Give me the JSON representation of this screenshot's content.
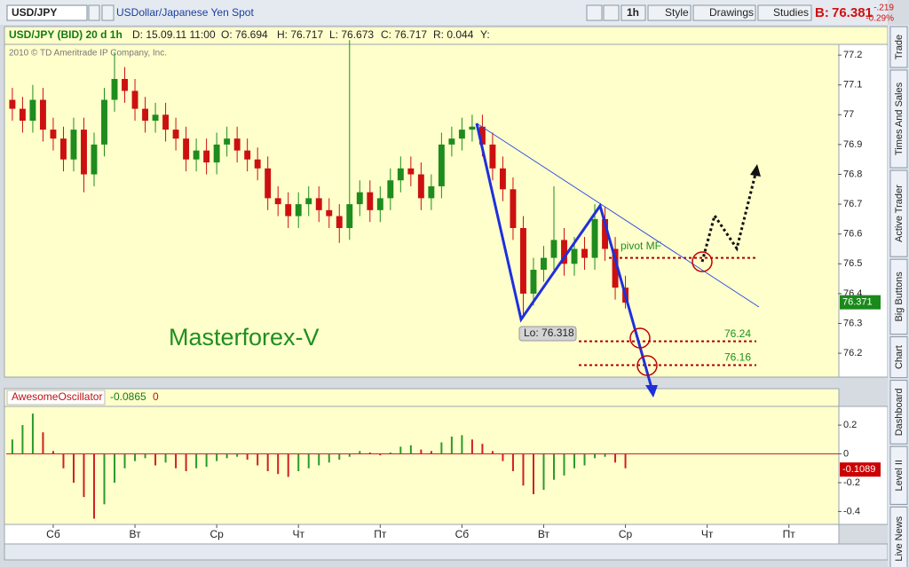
{
  "toolbar": {
    "symbol": "USD/JPY",
    "description": "USDollar/Japanese Yen Spot",
    "interval": "1h",
    "style": "Style",
    "drawings": "Drawings",
    "studies": "Studies",
    "bid_label": "B:",
    "bid": "76.381",
    "change": "-.219",
    "change_pct": "-0.29%"
  },
  "side_tabs": [
    "Trade",
    "Times And Sales",
    "Active Trader",
    "Big Buttons",
    "Chart",
    "Dashboard",
    "Level II",
    "Live News"
  ],
  "info_bar": {
    "title": "USD/JPY (BID) 20 d 1h",
    "date": "D: 15.09.11 11:00",
    "open": "O: 76.694",
    "high": "H: 76.717",
    "low": "L: 76.673",
    "close": "C: 76.717",
    "range": "R: 0.044",
    "y": "Y:"
  },
  "copyright": "2010 © TD Ameritrade IP Company, Inc.",
  "watermark": "Masterforex-V",
  "low_label": "Lo: 76.318",
  "chart_data": [
    {
      "type": "candlestick",
      "up_color": "#1e8c1e",
      "down_color": "#cc1010",
      "background": "#ffffcc",
      "x": [
        -0.5,
        -0.375,
        -0.25,
        -0.125,
        0,
        0.125,
        0.25,
        0.375,
        0.5,
        0.625,
        0.75,
        0.875,
        1,
        1.125,
        1.25,
        1.375,
        1.5,
        1.625,
        1.75,
        1.875,
        2,
        2.125,
        2.25,
        2.375,
        2.5,
        2.625,
        2.75,
        2.875,
        3,
        3.125,
        3.25,
        3.375,
        3.5,
        3.625,
        3.75,
        3.875,
        4,
        4.125,
        4.25,
        4.375,
        4.5,
        4.625,
        4.75,
        4.875,
        5,
        5.125,
        5.25,
        5.375,
        5.5,
        5.625,
        5.75,
        5.875,
        6,
        6.125,
        6.25,
        6.375,
        6.5,
        6.625,
        6.75,
        6.875,
        7
      ],
      "open": [
        77.05,
        77.02,
        76.98,
        77.05,
        76.95,
        76.92,
        76.85,
        76.95,
        76.8,
        76.9,
        77.05,
        77.12,
        77.08,
        77.02,
        76.98,
        77.0,
        76.95,
        76.92,
        76.85,
        76.88,
        76.84,
        76.9,
        76.92,
        76.88,
        76.85,
        76.82,
        76.72,
        76.7,
        76.66,
        76.7,
        76.72,
        76.68,
        76.66,
        76.62,
        76.7,
        76.74,
        76.68,
        76.72,
        76.78,
        76.82,
        76.8,
        76.72,
        76.76,
        76.9,
        76.92,
        76.95,
        76.96,
        76.9,
        76.82,
        76.75,
        76.62,
        76.4,
        76.48,
        76.52,
        76.58,
        76.5,
        76.55,
        76.52,
        76.65,
        76.55,
        76.42
      ],
      "high": [
        77.09,
        77.06,
        77.1,
        77.09,
        76.99,
        76.96,
        76.99,
        76.99,
        76.94,
        77.09,
        77.21,
        77.16,
        77.12,
        77.06,
        77.04,
        77.04,
        76.99,
        76.96,
        76.92,
        76.92,
        76.94,
        76.96,
        76.96,
        76.92,
        76.89,
        76.86,
        76.76,
        76.74,
        76.74,
        76.76,
        76.76,
        76.72,
        76.7,
        77.25,
        76.78,
        76.78,
        76.76,
        76.82,
        76.86,
        76.86,
        76.84,
        76.8,
        76.94,
        76.96,
        76.99,
        77.0,
        77.0,
        76.94,
        76.86,
        76.79,
        76.66,
        76.52,
        76.56,
        76.76,
        76.62,
        76.59,
        76.59,
        76.7,
        76.69,
        76.59,
        76.46
      ],
      "low": [
        76.98,
        76.94,
        76.94,
        76.91,
        76.88,
        76.81,
        76.81,
        76.74,
        76.76,
        76.86,
        77.01,
        77.04,
        76.98,
        76.94,
        76.94,
        76.91,
        76.88,
        76.81,
        76.81,
        76.8,
        76.8,
        76.86,
        76.84,
        76.81,
        76.78,
        76.68,
        76.66,
        76.62,
        76.62,
        76.66,
        76.64,
        76.62,
        76.57,
        76.58,
        76.66,
        76.64,
        76.64,
        76.68,
        76.74,
        76.76,
        76.68,
        76.68,
        76.72,
        76.86,
        76.88,
        76.91,
        76.86,
        76.78,
        76.71,
        76.58,
        76.318,
        76.36,
        76.44,
        76.48,
        76.46,
        76.46,
        76.48,
        76.48,
        76.51,
        76.38,
        76.35
      ],
      "close": [
        77.02,
        76.98,
        77.05,
        76.95,
        76.92,
        76.85,
        76.95,
        76.8,
        76.9,
        77.05,
        77.12,
        77.08,
        77.02,
        76.98,
        77.0,
        76.95,
        76.92,
        76.85,
        76.88,
        76.84,
        76.9,
        76.92,
        76.88,
        76.85,
        76.82,
        76.72,
        76.7,
        76.66,
        76.7,
        76.72,
        76.68,
        76.66,
        76.62,
        76.7,
        76.74,
        76.68,
        76.72,
        76.78,
        76.82,
        76.8,
        76.72,
        76.76,
        76.9,
        76.92,
        76.95,
        76.96,
        76.9,
        76.82,
        76.75,
        76.62,
        76.4,
        76.48,
        76.52,
        76.58,
        76.5,
        76.55,
        76.52,
        76.65,
        76.55,
        76.42,
        76.37
      ],
      "xlim": [
        -0.575,
        9.6
      ],
      "xticks": [
        {
          "value": 0,
          "label": "Сб"
        },
        {
          "value": 1,
          "label": "Вт"
        },
        {
          "value": 2,
          "label": "Ср"
        },
        {
          "value": 3,
          "label": "Чт"
        },
        {
          "value": 4,
          "label": "Пт"
        },
        {
          "value": 5,
          "label": "Сб"
        },
        {
          "value": 6,
          "label": "Вт"
        },
        {
          "value": 7,
          "label": "Ср"
        },
        {
          "value": 8,
          "label": "Чт"
        },
        {
          "value": 9,
          "label": "Пт"
        }
      ],
      "ylim": [
        76.12,
        77.236
      ],
      "yticks": [
        76.2,
        76.3,
        76.4,
        76.5,
        76.6,
        76.7,
        76.8,
        76.9,
        77,
        77.1,
        77.2
      ],
      "last_value": 76.371,
      "last_color": "#1a8a1a",
      "levels": [
        {
          "name": "pivot MF",
          "value": 76.52
        },
        {
          "value": 76.24
        },
        {
          "value": 76.16
        }
      ],
      "level_color": "#b00000"
    },
    {
      "type": "histogram",
      "title": "AwesomeOscillator",
      "header_value": -0.0865,
      "header_extra": 0,
      "up_color": "#2a9a2a",
      "down_color": "#d02020",
      "zero_color": "#cc2222",
      "values": [
        0.1,
        0.2,
        0.28,
        0.15,
        0.02,
        -0.1,
        -0.2,
        -0.3,
        -0.45,
        -0.35,
        -0.2,
        -0.1,
        -0.05,
        -0.03,
        -0.08,
        -0.06,
        -0.1,
        -0.12,
        -0.1,
        -0.09,
        -0.05,
        -0.03,
        -0.02,
        -0.04,
        -0.08,
        -0.12,
        -0.14,
        -0.16,
        -0.12,
        -0.1,
        -0.08,
        -0.06,
        -0.04,
        -0.02,
        0.02,
        0.01,
        -0.01,
        0.01,
        0.05,
        0.06,
        0.03,
        0.02,
        0.08,
        0.12,
        0.13,
        0.1,
        0.07,
        0.02,
        -0.05,
        -0.12,
        -0.22,
        -0.28,
        -0.25,
        -0.18,
        -0.15,
        -0.1,
        -0.08,
        -0.03,
        -0.02,
        -0.06,
        -0.1
      ],
      "ylim": [
        -0.49,
        0.33
      ],
      "yticks": [
        -0.4,
        -0.2,
        0,
        0.2
      ],
      "last_value": -0.1089,
      "last_color": "#cc0000"
    }
  ]
}
